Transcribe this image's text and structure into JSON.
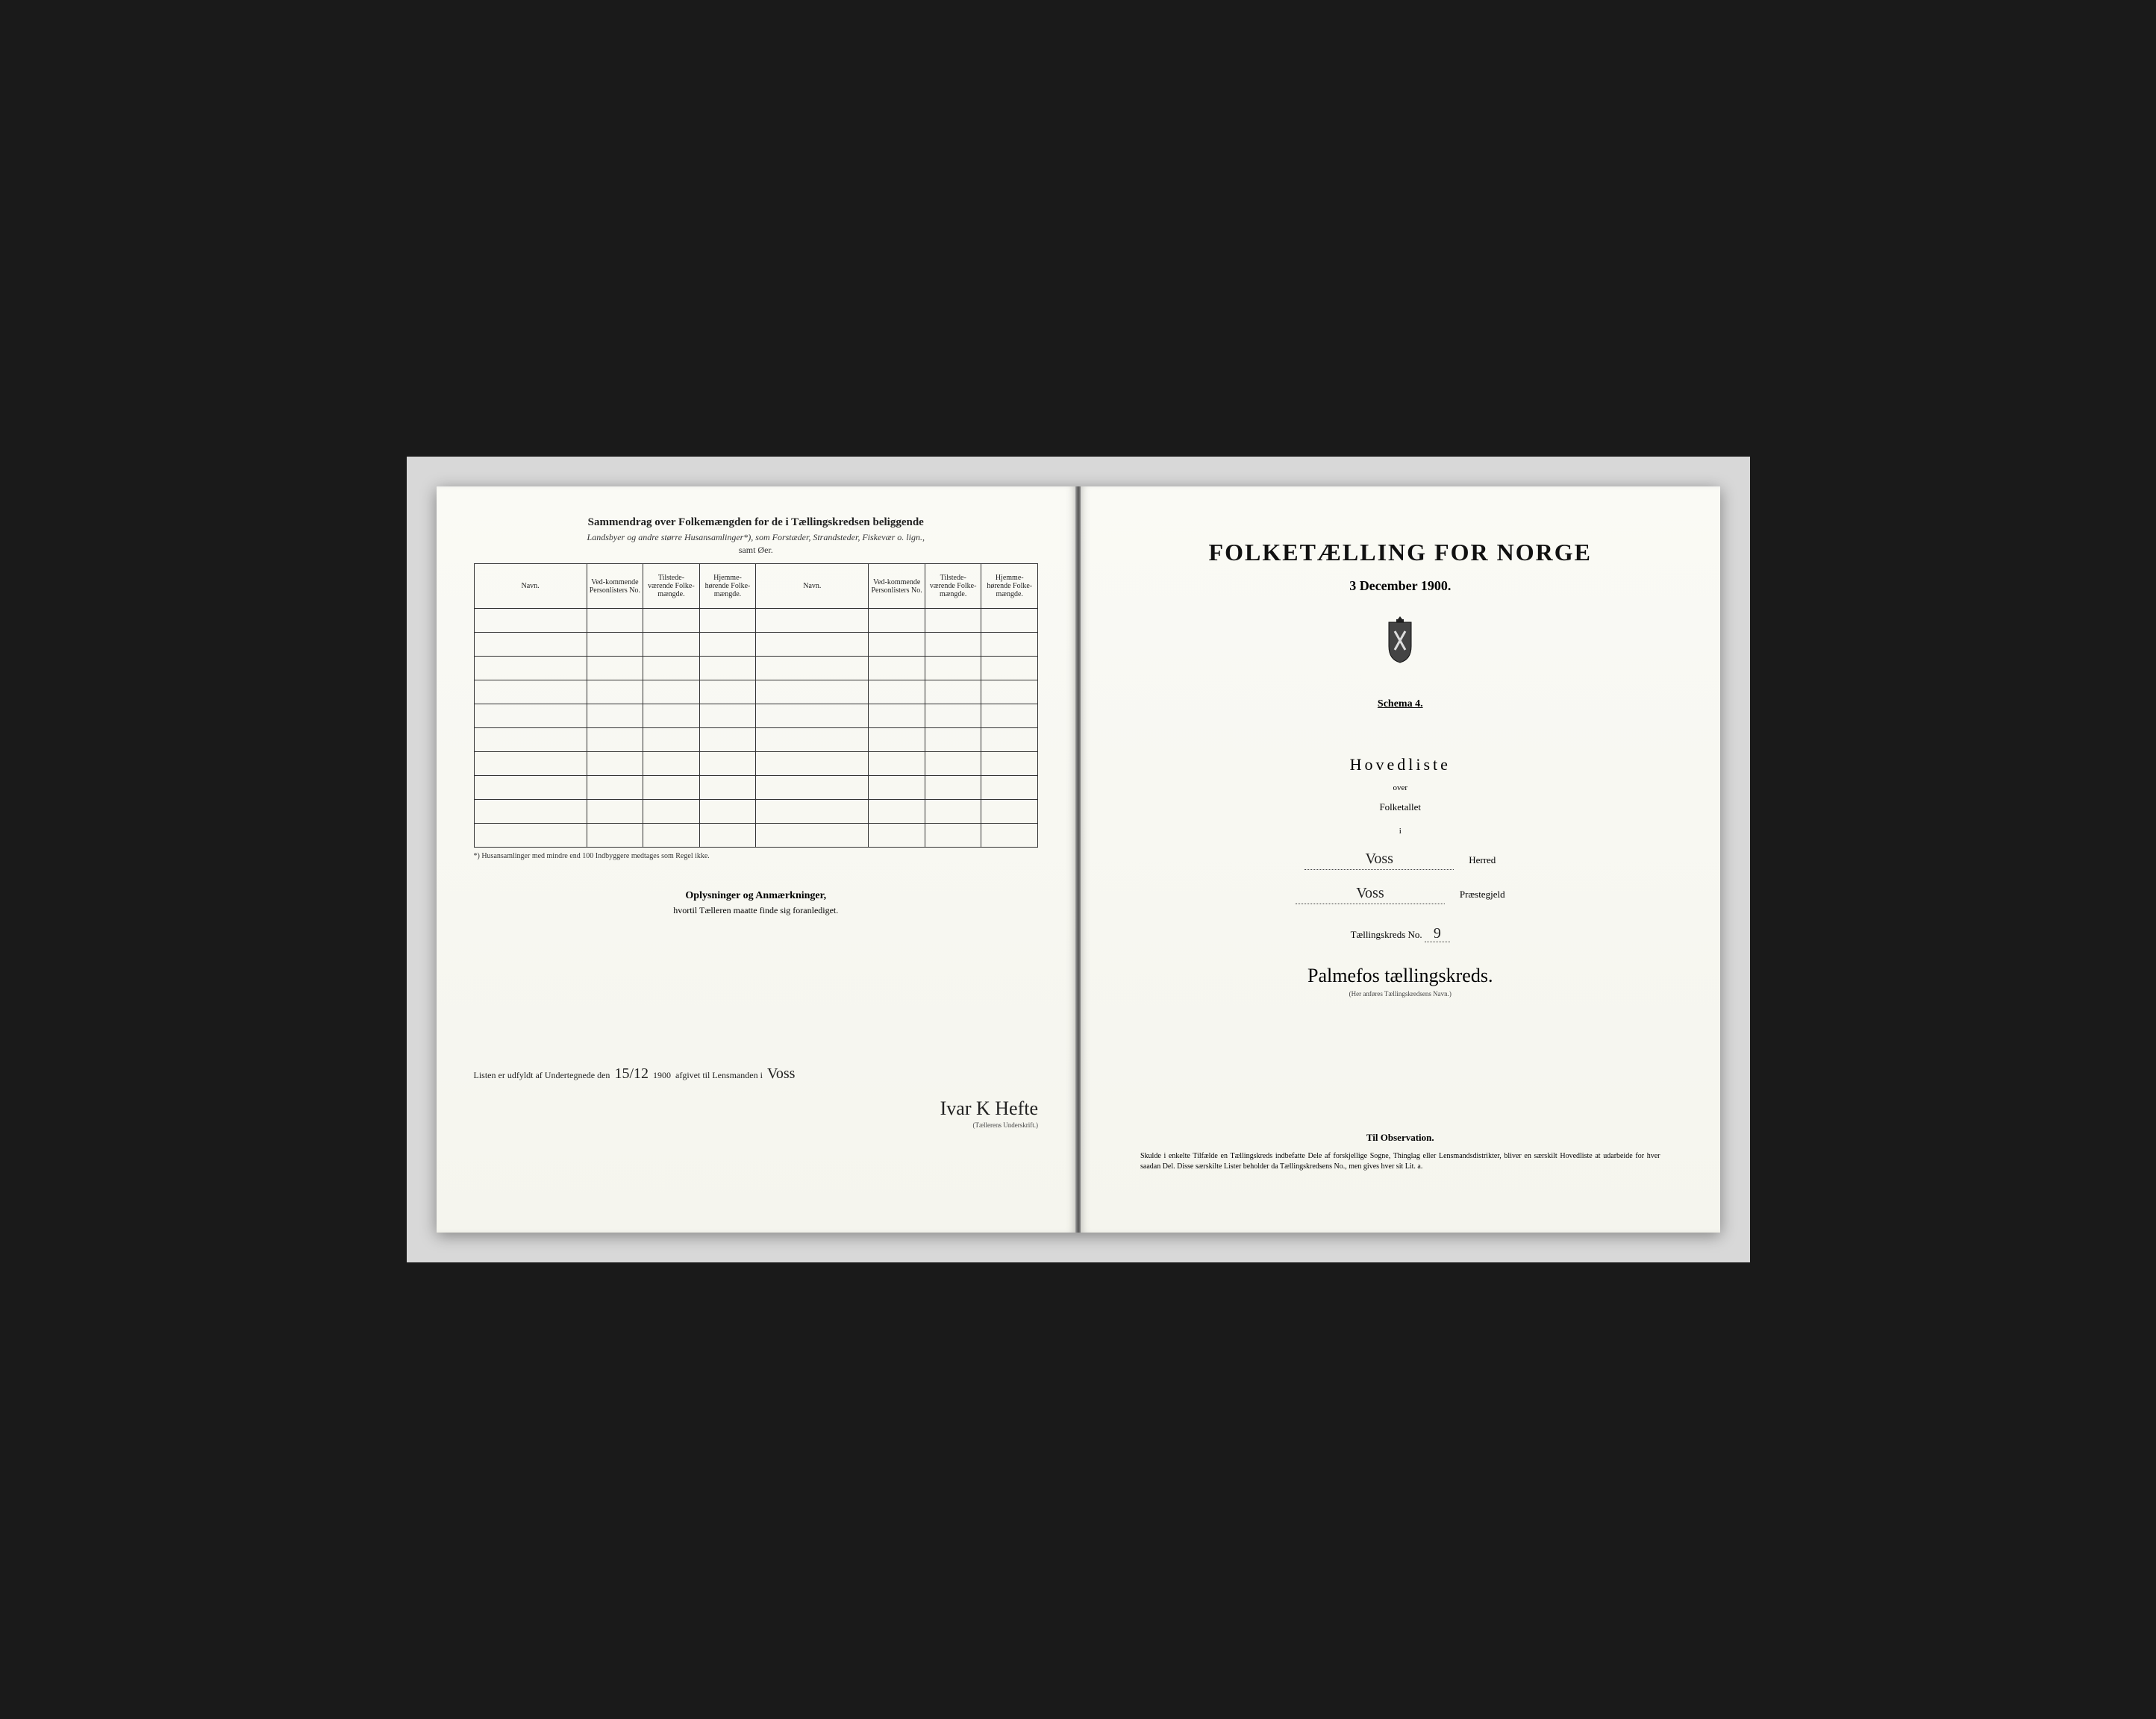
{
  "leftPage": {
    "title": "Sammendrag over Folkemængden for de i Tællingskredsen beliggende",
    "subtitle": "Landsbyer og andre større Husansamlinger*), som Forstæder, Strandsteder, Fiskevær o. lign.,",
    "subline": "samt Øer.",
    "table": {
      "headers_set": [
        "Navn.",
        "Ved-kommende Personlisters No.",
        "Tilstede-værende Folke-mængde.",
        "Hjemme-hørende Folke-mængde."
      ],
      "row_count": 10
    },
    "footnote": "*) Husansamlinger med mindre end 100 Indbyggere medtages som Regel ikke.",
    "oplysninger": {
      "title": "Oplysninger og Anmærkninger,",
      "sub": "hvortil Tælleren maatte finde sig foranlediget."
    },
    "bottom": {
      "prefix": "Listen er udfyldt af Undertegnede den",
      "date": "15/12",
      "year": "1900",
      "mid": "afgivet til Lensmanden i",
      "place": "Voss",
      "signature": "Ivar K Hefte",
      "sig_caption": "(Tællerens Underskrift.)"
    }
  },
  "rightPage": {
    "mainTitle": "FOLKETÆLLING FOR NORGE",
    "date": "3 December 1900.",
    "schema": "Schema 4.",
    "hovedliste": "Hovedliste",
    "over": "over",
    "folketallet": "Folketallet",
    "i": "i",
    "herred": {
      "value": "Voss",
      "label": "Herred"
    },
    "praestegj": {
      "value": "Voss",
      "label": "Præstegjeld"
    },
    "tkNo": {
      "label": "Tællingskreds No.",
      "value": "9"
    },
    "tkName": "Palmefos tællingskreds.",
    "tkCaption": "(Her anføres Tællingskredsens Navn.)",
    "observation": {
      "title": "Til Observation.",
      "body": "Skulde i enkelte Tilfælde en Tællingskreds indbefatte Dele af forskjellige Sogne, Thinglag eller Lensmandsdistrikter, bliver en særskilt Hovedliste at udarbeide for hver saadan Del. Disse særskilte Lister beholder da Tællingskredsens No., men gives hver sit Lit. a."
    }
  },
  "colors": {
    "page_bg": "#fafaf5",
    "text": "#222222",
    "border": "#333333",
    "frame": "#d8d8d8",
    "outer": "#1a1a1a"
  }
}
